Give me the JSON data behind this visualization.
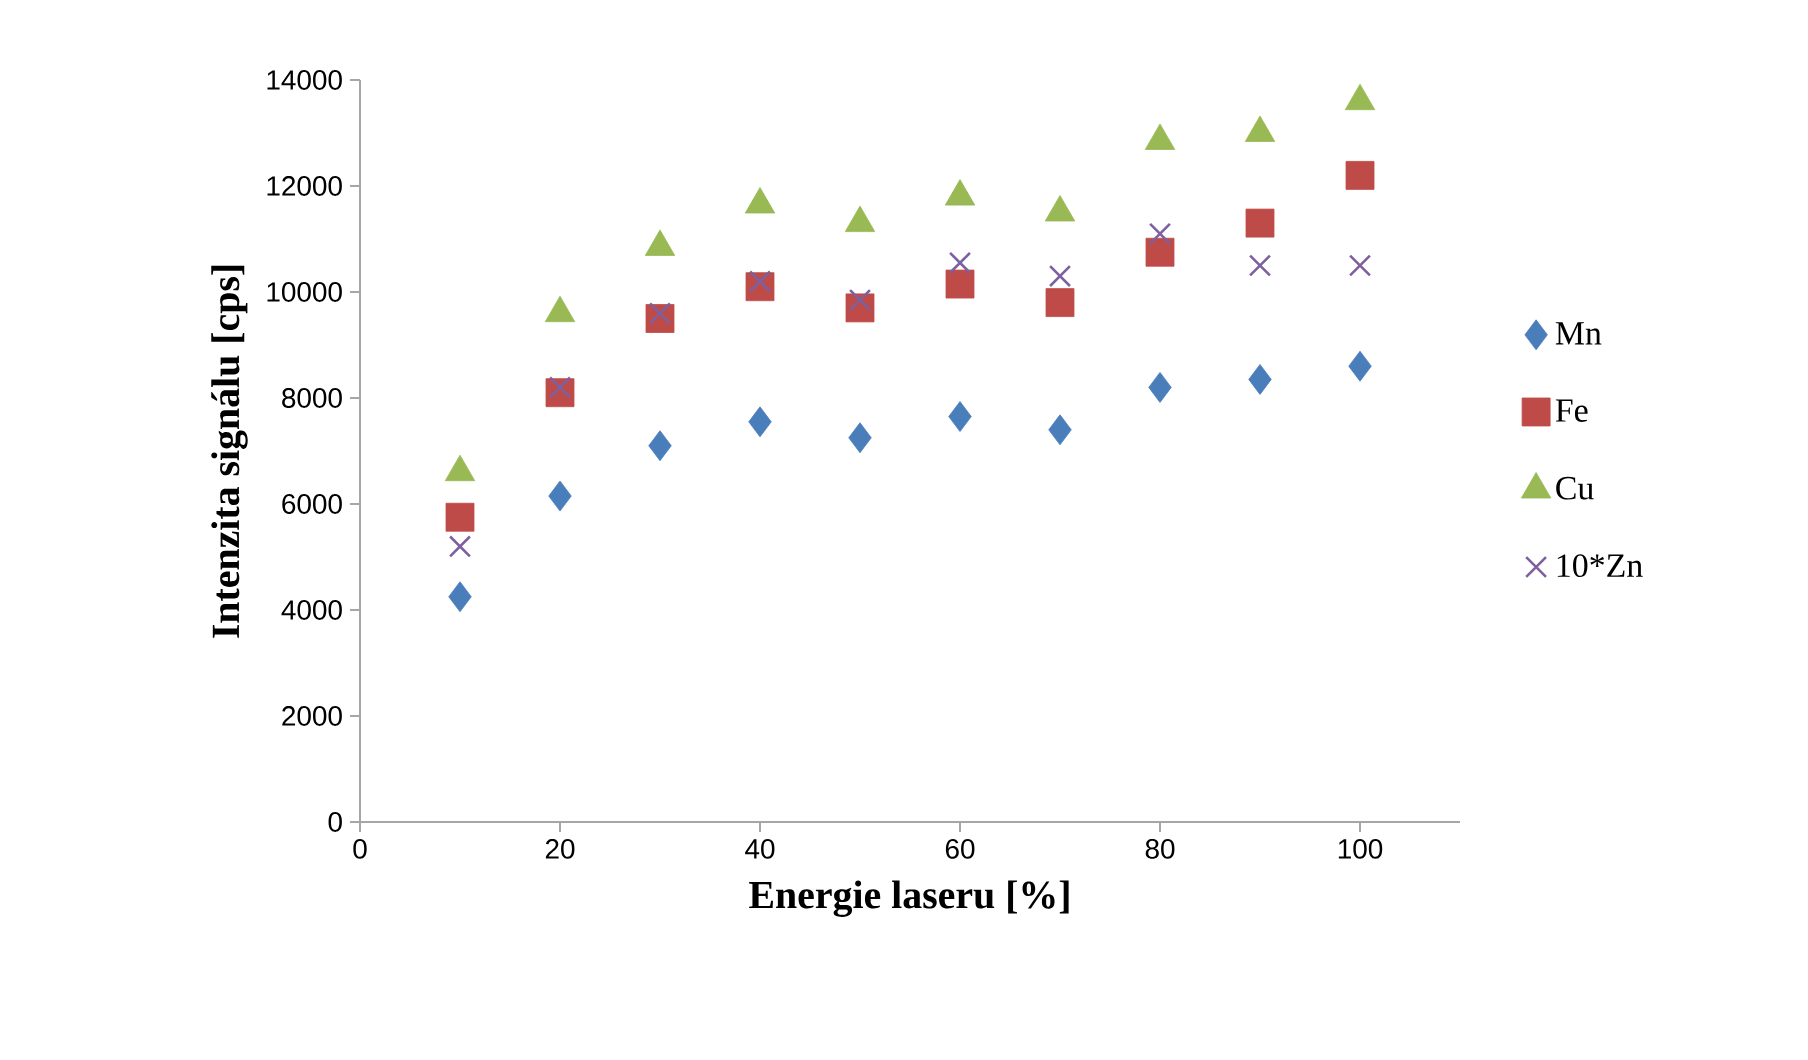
{
  "chart_data": {
    "type": "scatter",
    "xlabel": "Energie laseru [%]",
    "ylabel": "Intenzita signálu [cps]",
    "x": [
      10,
      20,
      30,
      40,
      50,
      60,
      70,
      80,
      90,
      100
    ],
    "xlim": [
      0,
      110
    ],
    "xticks": [
      0,
      20,
      40,
      60,
      80,
      100
    ],
    "ylim": [
      0,
      14000
    ],
    "yticks": [
      0,
      2000,
      4000,
      6000,
      8000,
      10000,
      12000,
      14000
    ],
    "grid": false,
    "legend": "right",
    "series": [
      {
        "name": "Mn",
        "color": "#4a7ebb",
        "marker": "diamond",
        "values": [
          4250,
          6150,
          7100,
          7550,
          7250,
          7650,
          7400,
          8200,
          8350,
          8600
        ]
      },
      {
        "name": "Fe",
        "color": "#be4b48",
        "marker": "square",
        "values": [
          5750,
          8100,
          9500,
          10100,
          9700,
          10150,
          9800,
          10750,
          11300,
          12200
        ]
      },
      {
        "name": "Cu",
        "color": "#98b954",
        "marker": "triangle",
        "values": [
          6600,
          9600,
          10850,
          11650,
          11300,
          11800,
          11500,
          12850,
          13000,
          13600
        ]
      },
      {
        "name": "10*Zn",
        "color": "#7d60a0",
        "marker": "cross",
        "values": [
          5200,
          8200,
          9600,
          10200,
          9850,
          10550,
          10300,
          11100,
          10500,
          10500
        ]
      }
    ]
  }
}
